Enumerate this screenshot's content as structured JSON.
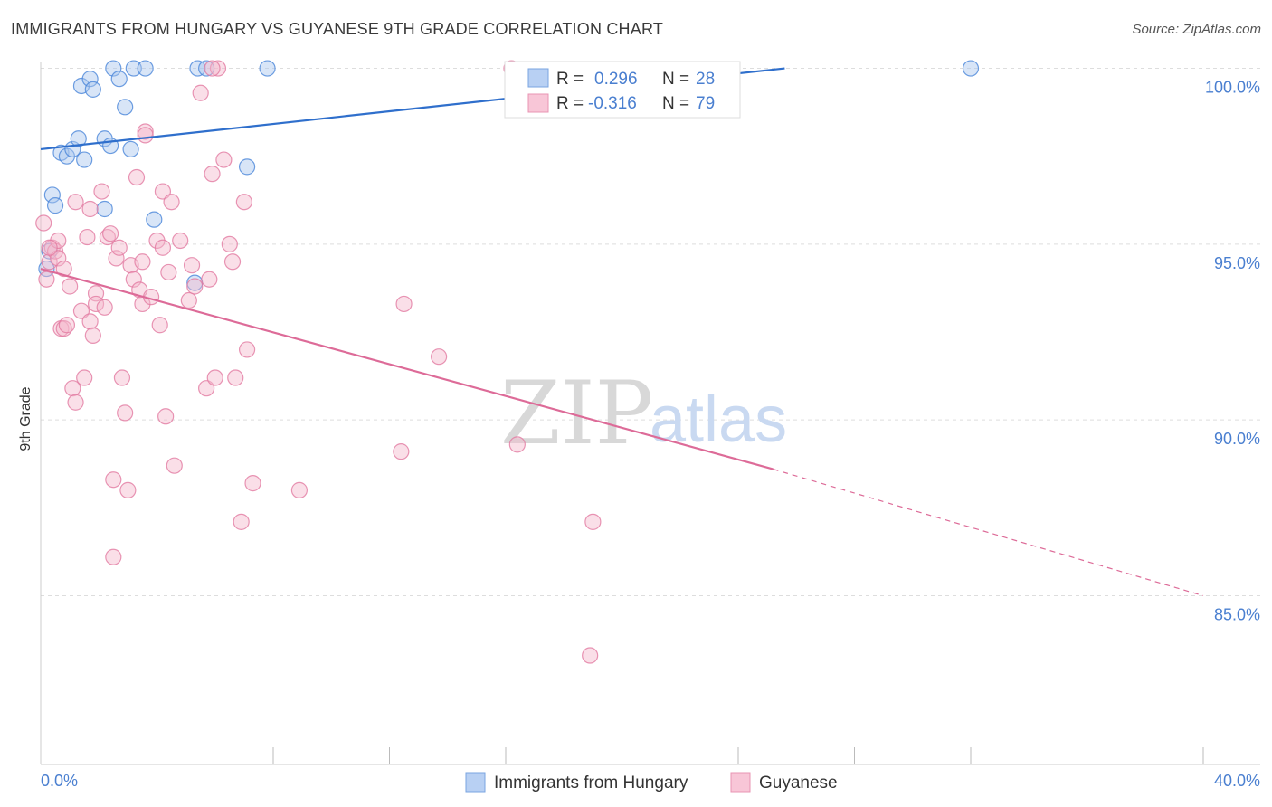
{
  "title": "IMMIGRANTS FROM HUNGARY VS GUYANESE 9TH GRADE CORRELATION CHART",
  "source": "Source: ZipAtlas.com",
  "watermark": {
    "zip": "ZIP",
    "atlas": "atlas"
  },
  "colors": {
    "blue": "#4a86d9",
    "blue_fill": "#a9c6ee",
    "blue_line": "#2f6fcc",
    "pink": "#e27ba1",
    "pink_fill": "#f4b8cd",
    "pink_line": "#dd6b98",
    "tick_text": "#4a7fd0",
    "grid": "#dddddd"
  },
  "legend": [
    {
      "r_label": "R =",
      "r_value": "0.296",
      "n_label": "N =",
      "n_value": "28"
    },
    {
      "r_label": "R =",
      "r_value": "-0.316",
      "n_label": "N =",
      "n_value": "79"
    }
  ],
  "chart_data": {
    "type": "scatter",
    "title": "IMMIGRANTS FROM HUNGARY VS GUYANESE 9TH GRADE CORRELATION CHART",
    "xlabel": "",
    "ylabel": "9th Grade",
    "xlim": [
      0,
      40
    ],
    "ylim": [
      80.2,
      100.4
    ],
    "x_tick_labels": [
      "0.0%",
      "40.0%"
    ],
    "y_ticks": [
      85,
      90,
      95,
      100
    ],
    "y_tick_labels": [
      "85.0%",
      "90.0%",
      "95.0%",
      "100.0%"
    ],
    "grid": true,
    "legend_position": "top-center",
    "series": [
      {
        "name": "Immigrants from Hungary",
        "color": "#4a86d9",
        "r": 0.296,
        "n": 28,
        "trend": {
          "x": [
            0,
            25.6
          ],
          "y": [
            97.7,
            100.0
          ]
        },
        "points": [
          [
            0.3,
            94.8
          ],
          [
            0.4,
            96.4
          ],
          [
            0.5,
            96.1
          ],
          [
            0.7,
            97.6
          ],
          [
            0.9,
            97.5
          ],
          [
            1.1,
            97.7
          ],
          [
            1.3,
            98.0
          ],
          [
            1.4,
            99.5
          ],
          [
            1.5,
            97.4
          ],
          [
            1.7,
            99.7
          ],
          [
            1.8,
            99.4
          ],
          [
            2.2,
            96.0
          ],
          [
            2.2,
            98.0
          ],
          [
            2.4,
            97.8
          ],
          [
            2.5,
            100.0
          ],
          [
            2.7,
            99.7
          ],
          [
            2.9,
            98.9
          ],
          [
            3.1,
            97.7
          ],
          [
            3.2,
            100.0
          ],
          [
            3.6,
            100.0
          ],
          [
            3.9,
            95.7
          ],
          [
            5.3,
            93.9
          ],
          [
            5.4,
            100.0
          ],
          [
            5.7,
            100.0
          ],
          [
            7.1,
            97.2
          ],
          [
            7.8,
            100.0
          ],
          [
            32.0,
            100.0
          ],
          [
            0.2,
            94.3
          ]
        ]
      },
      {
        "name": "Guyanese",
        "color": "#e27ba1",
        "r": -0.316,
        "n": 79,
        "trend": {
          "x": [
            0,
            25.2
          ],
          "y": [
            94.3,
            88.6
          ]
        },
        "trend_dashed": {
          "x": [
            25.2,
            40
          ],
          "y": [
            88.6,
            85.0
          ]
        },
        "points": [
          [
            0.1,
            95.6
          ],
          [
            0.2,
            94.0
          ],
          [
            0.3,
            94.5
          ],
          [
            0.4,
            94.9
          ],
          [
            0.5,
            94.8
          ],
          [
            0.6,
            95.1
          ],
          [
            0.6,
            94.6
          ],
          [
            0.7,
            92.6
          ],
          [
            0.8,
            94.3
          ],
          [
            0.8,
            92.6
          ],
          [
            0.9,
            92.7
          ],
          [
            1.0,
            93.8
          ],
          [
            1.1,
            90.9
          ],
          [
            1.2,
            90.5
          ],
          [
            1.2,
            96.2
          ],
          [
            1.4,
            93.1
          ],
          [
            1.5,
            91.2
          ],
          [
            1.6,
            95.2
          ],
          [
            1.7,
            96.0
          ],
          [
            1.7,
            92.8
          ],
          [
            1.8,
            92.4
          ],
          [
            1.9,
            93.6
          ],
          [
            1.9,
            93.3
          ],
          [
            2.1,
            96.5
          ],
          [
            2.2,
            93.2
          ],
          [
            2.3,
            95.2
          ],
          [
            2.4,
            95.3
          ],
          [
            2.5,
            88.3
          ],
          [
            2.5,
            86.1
          ],
          [
            2.6,
            94.6
          ],
          [
            2.7,
            94.9
          ],
          [
            2.8,
            91.2
          ],
          [
            2.9,
            90.2
          ],
          [
            3.0,
            88.0
          ],
          [
            3.1,
            94.4
          ],
          [
            3.2,
            94.0
          ],
          [
            3.3,
            96.9
          ],
          [
            3.4,
            93.7
          ],
          [
            3.5,
            94.5
          ],
          [
            3.5,
            93.3
          ],
          [
            3.6,
            98.2
          ],
          [
            3.8,
            93.5
          ],
          [
            4.0,
            95.1
          ],
          [
            4.1,
            92.7
          ],
          [
            4.2,
            96.5
          ],
          [
            4.2,
            94.9
          ],
          [
            4.3,
            90.1
          ],
          [
            4.4,
            94.2
          ],
          [
            4.5,
            96.2
          ],
          [
            4.6,
            88.7
          ],
          [
            4.8,
            95.1
          ],
          [
            5.1,
            93.4
          ],
          [
            5.2,
            94.4
          ],
          [
            5.3,
            93.8
          ],
          [
            5.5,
            99.3
          ],
          [
            5.7,
            90.9
          ],
          [
            5.8,
            94.0
          ],
          [
            5.9,
            97.0
          ],
          [
            6.0,
            91.2
          ],
          [
            6.1,
            100.0
          ],
          [
            6.3,
            97.4
          ],
          [
            6.5,
            95.0
          ],
          [
            6.6,
            94.5
          ],
          [
            6.7,
            91.2
          ],
          [
            6.9,
            87.1
          ],
          [
            7.0,
            96.2
          ],
          [
            7.1,
            92.0
          ],
          [
            7.3,
            88.2
          ],
          [
            8.9,
            88.0
          ],
          [
            12.5,
            93.3
          ],
          [
            12.4,
            89.1
          ],
          [
            13.7,
            91.8
          ],
          [
            16.4,
            89.3
          ],
          [
            16.2,
            100.0
          ],
          [
            19.0,
            87.1
          ],
          [
            18.9,
            83.3
          ],
          [
            3.6,
            98.1
          ],
          [
            5.9,
            100.0
          ],
          [
            0.3,
            94.9
          ]
        ]
      }
    ]
  }
}
